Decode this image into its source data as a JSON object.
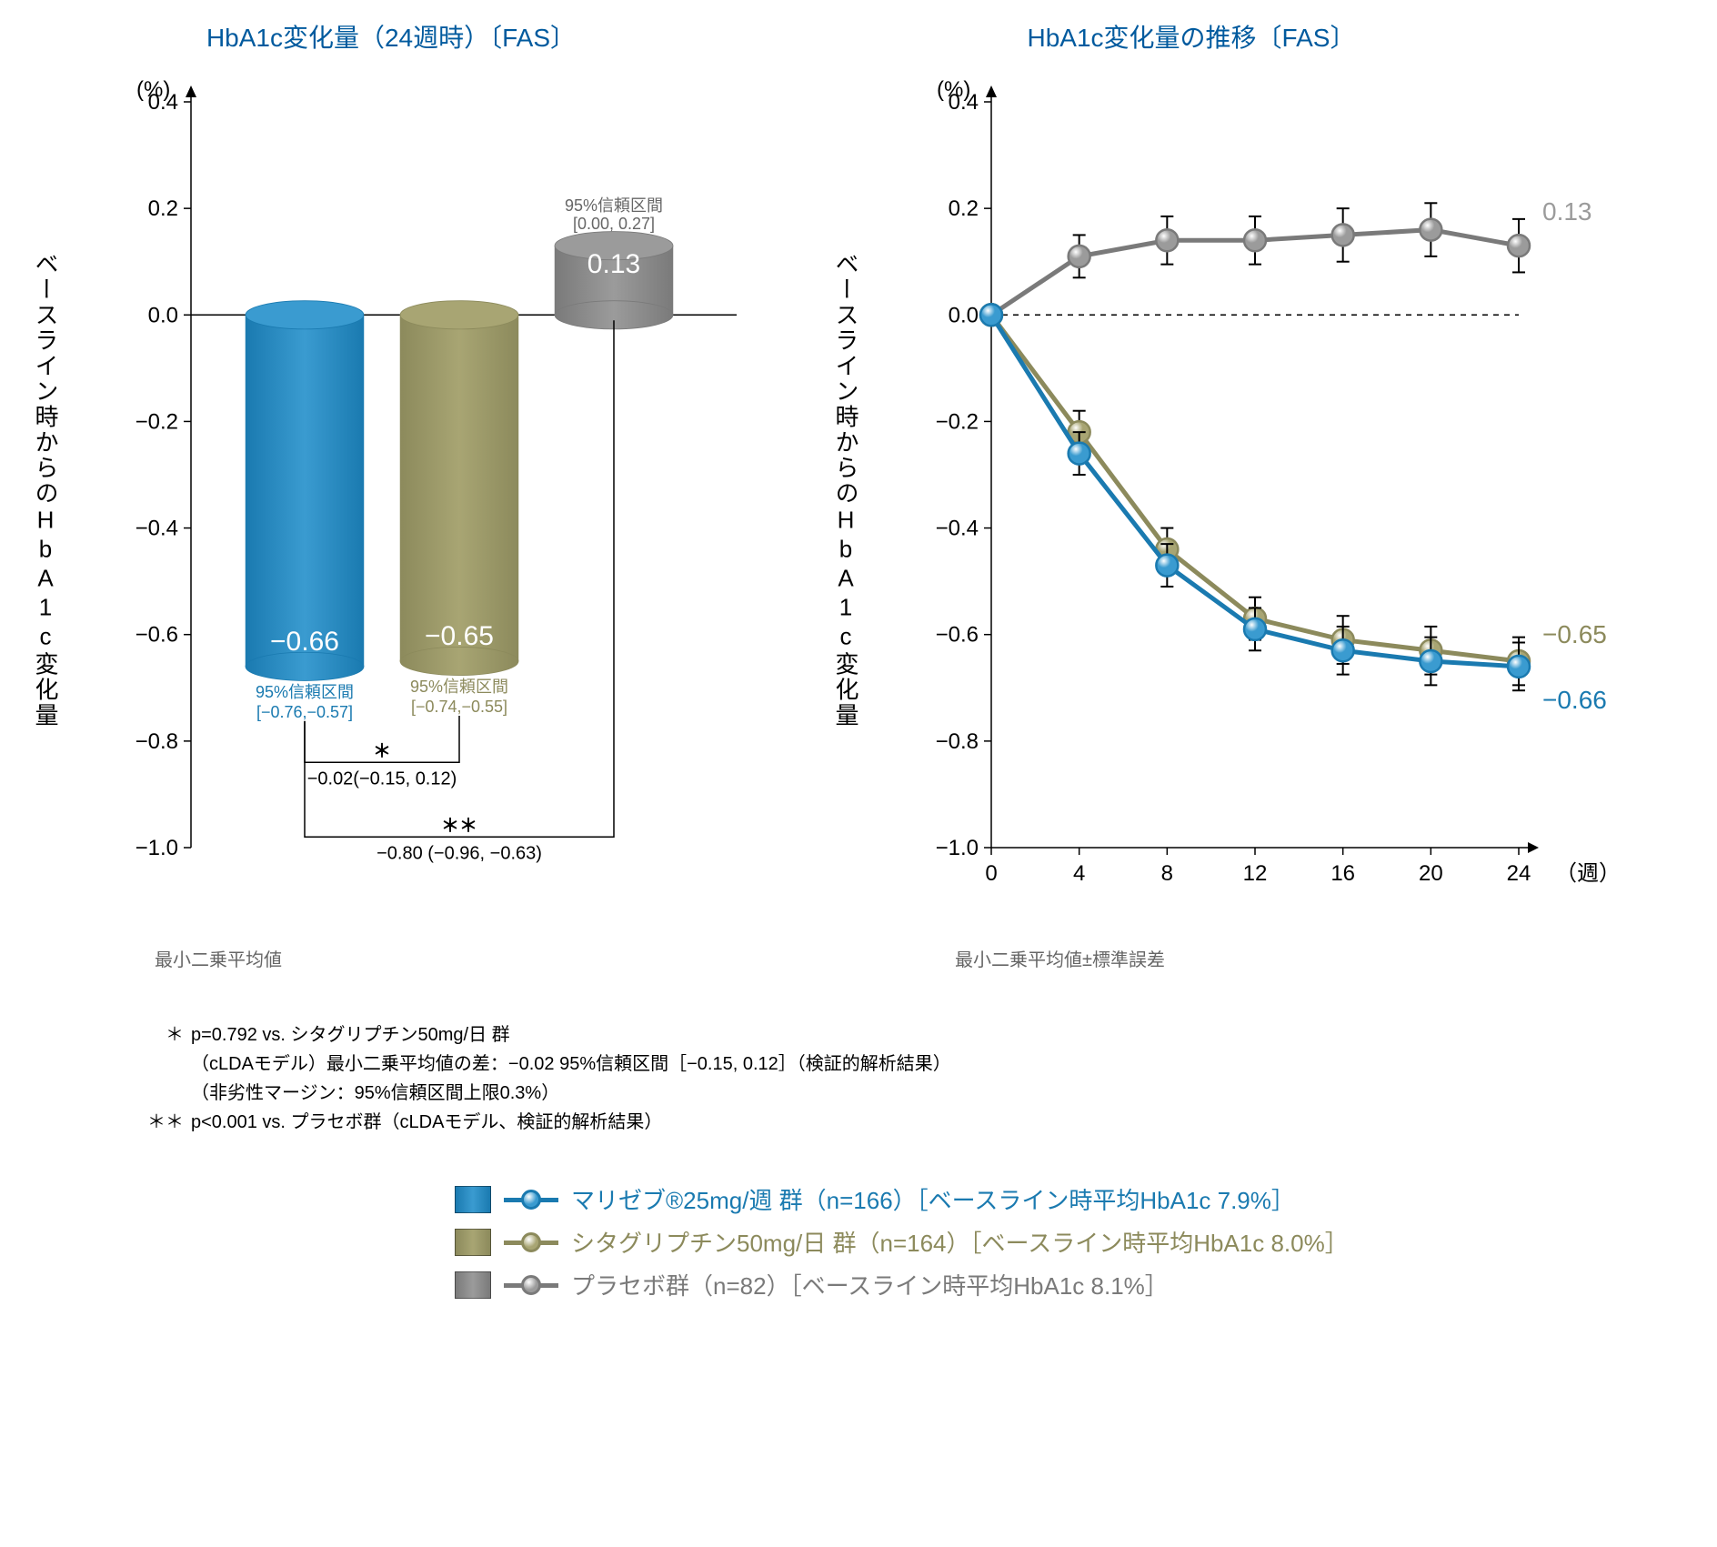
{
  "colors": {
    "title": "#005a9e",
    "blue": "#3a9bd0",
    "blue_dark": "#1a7ab0",
    "olive": "#a8a573",
    "olive_dark": "#8c8a5c",
    "gray": "#9b9b9b",
    "gray_dark": "#7a7a7a",
    "text_gray": "#9b9b9b",
    "text_olive": "#8c8a5c",
    "text_blue": "#1a7ab0"
  },
  "y_axis": {
    "unit": "(%)",
    "ticks": [
      0.4,
      0.2,
      0.0,
      -0.2,
      -0.4,
      -0.6,
      -0.8,
      -1.0
    ],
    "tick_labels": [
      "0.4",
      "0.2",
      "0.0",
      "−0.2",
      "−0.4",
      "−0.6",
      "−0.8",
      "−1.0"
    ],
    "min": -1.0,
    "max": 0.4
  },
  "y_axis_label": "ベースライン時からのHbA1c変化量",
  "bar_chart": {
    "title": "HbA1c変化量（24週時）〔FAS〕",
    "sub_note": "最小二乗平均値",
    "bars": [
      {
        "key": "blue",
        "value": -0.66,
        "label": "−0.66",
        "ci_title": "95%信頼区間",
        "ci_range": "[−0.76,−0.57]",
        "ci_color": "#1a7ab0"
      },
      {
        "key": "olive",
        "value": -0.65,
        "label": "−0.65",
        "ci_title": "95%信頼区間",
        "ci_range": "[−0.74,−0.55]",
        "ci_color": "#8c8a5c"
      },
      {
        "key": "gray",
        "value": 0.13,
        "label": "0.13",
        "ci_title": "95%信頼区間",
        "ci_range": "[0.00, 0.27]",
        "ci_color": "#666666"
      }
    ],
    "comparisons": [
      {
        "symbol": "＊",
        "text": "−0.02(−0.15, 0.12)",
        "from": 0,
        "to": 1,
        "y": -0.84
      },
      {
        "symbol": "＊＊",
        "text": "−0.80 (−0.96, −0.63)",
        "from": 0,
        "to": 2,
        "y": -0.98
      }
    ]
  },
  "line_chart": {
    "title": "HbA1c変化量の推移〔FAS〕",
    "sub_note": "最小二乗平均値±標準誤差",
    "x_unit": "（週）",
    "x_ticks": [
      0,
      4,
      8,
      12,
      16,
      20,
      24
    ],
    "series": [
      {
        "key": "gray",
        "end_label": "0.13",
        "end_color": "#9b9b9b",
        "points": [
          [
            0,
            0.0
          ],
          [
            4,
            0.11
          ],
          [
            8,
            0.14
          ],
          [
            12,
            0.14
          ],
          [
            16,
            0.15
          ],
          [
            20,
            0.16
          ],
          [
            24,
            0.13
          ]
        ],
        "err": [
          0,
          0.04,
          0.045,
          0.045,
          0.05,
          0.05,
          0.05
        ]
      },
      {
        "key": "olive",
        "end_label": "−0.65",
        "end_color": "#8c8a5c",
        "points": [
          [
            0,
            0.0
          ],
          [
            4,
            -0.22
          ],
          [
            8,
            -0.44
          ],
          [
            12,
            -0.57
          ],
          [
            16,
            -0.61
          ],
          [
            20,
            -0.63
          ],
          [
            24,
            -0.65
          ]
        ],
        "err": [
          0,
          0.04,
          0.04,
          0.04,
          0.045,
          0.045,
          0.045
        ]
      },
      {
        "key": "blue",
        "end_label": "−0.66",
        "end_color": "#1a7ab0",
        "points": [
          [
            0,
            0.0
          ],
          [
            4,
            -0.26
          ],
          [
            8,
            -0.47
          ],
          [
            12,
            -0.59
          ],
          [
            16,
            -0.63
          ],
          [
            20,
            -0.65
          ],
          [
            24,
            -0.66
          ]
        ],
        "err": [
          0,
          0.04,
          0.04,
          0.04,
          0.045,
          0.045,
          0.045
        ]
      }
    ]
  },
  "footnotes": [
    {
      "sym": "＊",
      "lines": [
        "p=0.792 vs. シタグリプチン50mg/日 群",
        "（cLDAモデル）最小二乗平均値の差：−0.02 95%信頼区間［−0.15, 0.12］（検証的解析結果）",
        "（非劣性マージン：95%信頼区間上限0.3%）"
      ]
    },
    {
      "sym": "＊＊",
      "lines": [
        "p<0.001 vs. プラセボ群（cLDAモデル、検証的解析結果）"
      ]
    }
  ],
  "legend": [
    {
      "key": "blue",
      "text": "マリゼブ®25mg/週 群（n=166）［ベースライン時平均HbA1c 7.9%］"
    },
    {
      "key": "olive",
      "text": "シタグリプチン50mg/日 群（n=164）［ベースライン時平均HbA1c 8.0%］"
    },
    {
      "key": "gray",
      "text": "プラセボ群（n=82）［ベースライン時平均HbA1c 8.1%］"
    }
  ]
}
